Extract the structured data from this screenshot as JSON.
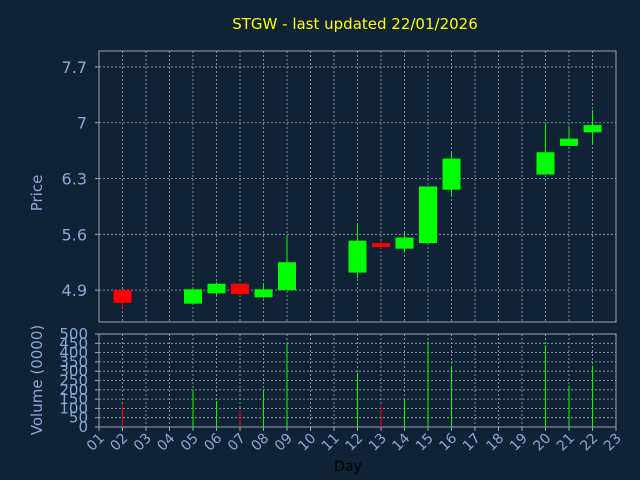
{
  "chart_data": {
    "type": "candlestick",
    "title": "STGW - last updated 22/01/2026",
    "xlabel": "Day",
    "x_ticks": [
      "01",
      "02",
      "03",
      "04",
      "05",
      "06",
      "07",
      "08",
      "09",
      "10",
      "11",
      "12",
      "13",
      "14",
      "15",
      "16",
      "17",
      "18",
      "19",
      "20",
      "21",
      "22",
      "23"
    ],
    "price_panel": {
      "ylabel": "Price",
      "ylim": [
        4.5,
        7.9
      ],
      "y_ticks": [
        "4.9",
        "5.6",
        "6.3",
        "7",
        "7.7"
      ],
      "grid": true
    },
    "volume_panel": {
      "ylabel": "Volume (0000)",
      "ylim": [
        0,
        500
      ],
      "y_ticks": [
        "0",
        "50",
        "100",
        "150",
        "200",
        "250",
        "300",
        "350",
        "400",
        "450",
        "500"
      ],
      "grid": true
    },
    "candles": [
      {
        "day": 2,
        "open": 4.9,
        "high": 4.91,
        "low": 4.67,
        "close": 4.74,
        "volume": 120
      },
      {
        "day": 5,
        "open": 4.73,
        "high": 4.92,
        "low": 4.72,
        "close": 4.91,
        "volume": 200
      },
      {
        "day": 6,
        "open": 4.86,
        "high": 5.0,
        "low": 4.83,
        "close": 4.98,
        "volume": 140
      },
      {
        "day": 7,
        "open": 4.98,
        "high": 4.99,
        "low": 4.82,
        "close": 4.85,
        "volume": 95
      },
      {
        "day": 8,
        "open": 4.81,
        "high": 4.99,
        "low": 4.8,
        "close": 4.91,
        "volume": 195
      },
      {
        "day": 9,
        "open": 4.9,
        "high": 5.58,
        "low": 4.9,
        "close": 5.25,
        "volume": 450
      },
      {
        "day": 12,
        "open": 5.12,
        "high": 5.72,
        "low": 5.05,
        "close": 5.52,
        "volume": 290
      },
      {
        "day": 13,
        "open": 5.49,
        "high": 5.52,
        "low": 5.42,
        "close": 5.44,
        "volume": 115
      },
      {
        "day": 14,
        "open": 5.42,
        "high": 5.64,
        "low": 5.38,
        "close": 5.56,
        "volume": 145
      },
      {
        "day": 15,
        "open": 5.49,
        "high": 6.2,
        "low": 5.49,
        "close": 6.2,
        "volume": 460
      },
      {
        "day": 16,
        "open": 6.16,
        "high": 6.63,
        "low": 6.09,
        "close": 6.55,
        "volume": 330
      },
      {
        "day": 20,
        "open": 6.35,
        "high": 7.0,
        "low": 6.35,
        "close": 6.63,
        "volume": 440
      },
      {
        "day": 21,
        "open": 6.71,
        "high": 6.96,
        "low": 6.71,
        "close": 6.8,
        "volume": 220
      },
      {
        "day": 22,
        "open": 6.88,
        "high": 7.16,
        "low": 6.73,
        "close": 6.97,
        "volume": 330
      }
    ],
    "colors": {
      "background": "#0f2236",
      "panel": "#0f2236",
      "grid": "#9aa7b6",
      "up": "#00ff00",
      "down": "#ff0000",
      "title": "#ffff00",
      "text": "#8aa9d4",
      "xlabel": "#000000"
    }
  }
}
